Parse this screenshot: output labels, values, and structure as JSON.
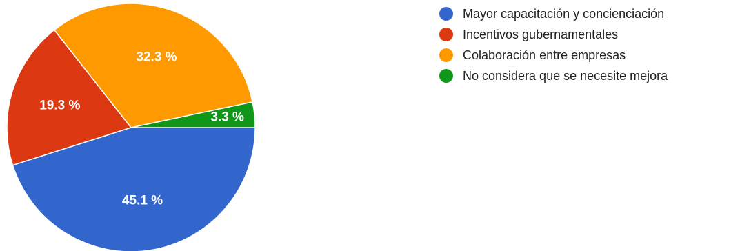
{
  "chart_data": {
    "type": "pie",
    "title": "",
    "slices": [
      {
        "name": "Mayor capacitación y concienciación",
        "value": 45.1,
        "label": "45.1 %",
        "color": "#3366cc"
      },
      {
        "name": "Incentivos gubernamentales",
        "value": 19.3,
        "label": "19.3 %",
        "color": "#dc3912"
      },
      {
        "name": "Colaboración entre empresas",
        "value": 32.3,
        "label": "32.3 %",
        "color": "#ff9900"
      },
      {
        "name": "No considera que se necesite mejora",
        "value": 3.3,
        "label": "3.3 %",
        "color": "#109618"
      }
    ],
    "legend_position": "right"
  },
  "legend": {
    "items": [
      {
        "label": "Mayor capacitación y concienciación",
        "color": "#3366cc"
      },
      {
        "label": "Incentivos gubernamentales",
        "color": "#dc3912"
      },
      {
        "label": "Colaboración entre empresas",
        "color": "#ff9900"
      },
      {
        "label": "No considera que se necesite mejora",
        "color": "#109618"
      }
    ]
  }
}
